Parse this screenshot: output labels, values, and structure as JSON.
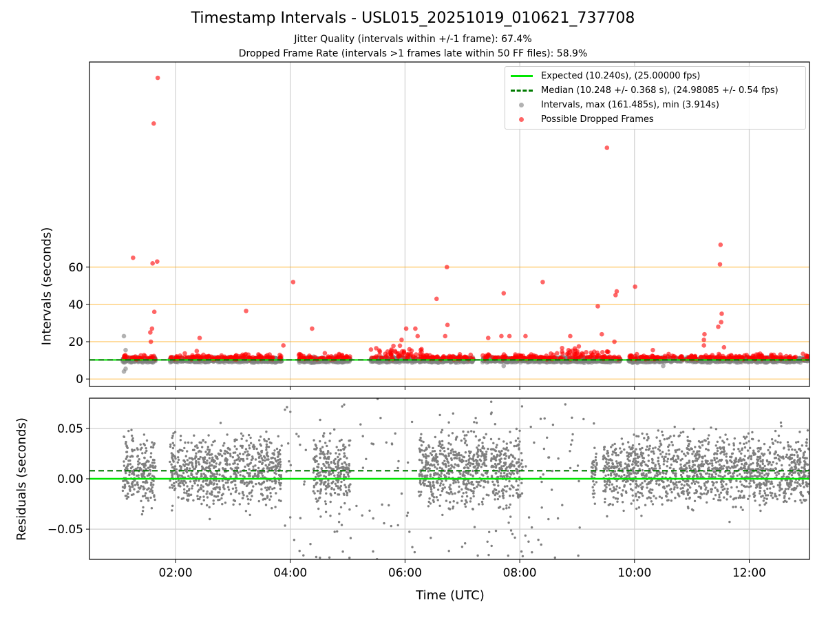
{
  "title": "Timestamp Intervals - USL015_20251019_010621_737708",
  "subtitle1": "Jitter Quality (intervals within +/-1 frame): 67.4%",
  "subtitle2": "Dropped Frame Rate (intervals >1 frames late within 50 FF files): 58.9%",
  "colors": {
    "expected": "#00e600",
    "median": "#007a00",
    "intervals": "#7f7f7f",
    "dropped": "#ff0000",
    "threshold": "#ffa500",
    "grid": "#cfcfcf"
  },
  "chart_data": [
    {
      "type": "scatter",
      "panel": "top",
      "ylabel": "Intervals (seconds)",
      "xlabel": "",
      "xlim": [
        0.5,
        13.05
      ],
      "ylim": [
        -4,
        170
      ],
      "yticks": [
        0,
        20,
        40,
        60
      ],
      "ytick_labels": [
        "0",
        "20",
        "40",
        "60"
      ],
      "threshold_lines": [
        0,
        20,
        40,
        60
      ],
      "grid": "vertical",
      "legend_position": "top-right",
      "legend": [
        "Expected (10.240s), (25.00000 fps)",
        "Median (10.248 +/- 0.368 s), (24.98085 +/- 0.54 fps)",
        "Intervals, max (161.485s), min (3.914s)",
        "Possible Dropped Frames"
      ],
      "expected": 10.24,
      "median": 10.248,
      "segments": [
        [
          1.08,
          1.65
        ],
        [
          1.9,
          3.85
        ],
        [
          4.15,
          5.05
        ],
        [
          5.4,
          6.2
        ],
        [
          6.25,
          7.2
        ],
        [
          7.35,
          8.2
        ],
        [
          8.2,
          9.75
        ],
        [
          9.9,
          10.85
        ],
        [
          10.9,
          11.65
        ],
        [
          11.65,
          13.05
        ]
      ],
      "dropped_outliers": [
        {
          "x": 1.26,
          "y": 65.0
        },
        {
          "x": 1.62,
          "y": 137.0
        },
        {
          "x": 1.69,
          "y": 161.5
        },
        {
          "x": 1.6,
          "y": 62.0
        },
        {
          "x": 1.68,
          "y": 63.0
        },
        {
          "x": 1.63,
          "y": 36.0
        },
        {
          "x": 1.56,
          "y": 25.0
        },
        {
          "x": 1.59,
          "y": 27.0
        },
        {
          "x": 1.57,
          "y": 20.0
        },
        {
          "x": 2.42,
          "y": 22.0
        },
        {
          "x": 2.37,
          "y": 15.0
        },
        {
          "x": 3.23,
          "y": 36.5
        },
        {
          "x": 3.17,
          "y": 13.0
        },
        {
          "x": 4.05,
          "y": 52.0
        },
        {
          "x": 3.88,
          "y": 18.0
        },
        {
          "x": 4.38,
          "y": 27.0
        },
        {
          "x": 5.94,
          "y": 21.0
        },
        {
          "x": 6.02,
          "y": 27.0
        },
        {
          "x": 6.18,
          "y": 27.0
        },
        {
          "x": 6.22,
          "y": 23.0
        },
        {
          "x": 6.55,
          "y": 43.0
        },
        {
          "x": 6.73,
          "y": 60.0
        },
        {
          "x": 6.7,
          "y": 23.0
        },
        {
          "x": 6.74,
          "y": 29.0
        },
        {
          "x": 7.45,
          "y": 22.0
        },
        {
          "x": 7.72,
          "y": 46.0
        },
        {
          "x": 7.68,
          "y": 23.0
        },
        {
          "x": 7.82,
          "y": 23.0
        },
        {
          "x": 8.4,
          "y": 52.0
        },
        {
          "x": 8.1,
          "y": 23.0
        },
        {
          "x": 9.52,
          "y": 124.0
        },
        {
          "x": 9.36,
          "y": 39.0
        },
        {
          "x": 9.43,
          "y": 24.0
        },
        {
          "x": 9.67,
          "y": 45.0
        },
        {
          "x": 9.69,
          "y": 47.0
        },
        {
          "x": 9.65,
          "y": 20.0
        },
        {
          "x": 10.01,
          "y": 49.5
        },
        {
          "x": 11.5,
          "y": 72.0
        },
        {
          "x": 11.49,
          "y": 61.5
        },
        {
          "x": 11.52,
          "y": 35.0
        },
        {
          "x": 11.51,
          "y": 30.5
        },
        {
          "x": 11.46,
          "y": 28.0
        },
        {
          "x": 11.21,
          "y": 21.0
        },
        {
          "x": 11.22,
          "y": 24.0
        },
        {
          "x": 11.21,
          "y": 18.0
        },
        {
          "x": 11.56,
          "y": 17.0
        },
        {
          "x": 10.32,
          "y": 15.5
        },
        {
          "x": 8.88,
          "y": 23.0
        }
      ],
      "gray_outliers": [
        {
          "x": 1.1,
          "y": 23.0
        },
        {
          "x": 1.13,
          "y": 15.5
        },
        {
          "x": 1.1,
          "y": 4.0
        },
        {
          "x": 1.13,
          "y": 5.5
        },
        {
          "x": 7.72,
          "y": 7.0
        },
        {
          "x": 10.5,
          "y": 7.0
        }
      ]
    },
    {
      "type": "scatter",
      "panel": "bottom",
      "ylabel": "Residuals (seconds)",
      "xlabel": "Time (UTC)",
      "xlim": [
        0.5,
        13.05
      ],
      "ylim": [
        -0.08,
        0.08
      ],
      "yticks": [
        -0.05,
        0.0,
        0.05
      ],
      "ytick_labels": [
        "−0.05",
        "0.00",
        "0.05"
      ],
      "xticks": [
        2,
        4,
        6,
        8,
        10,
        12
      ],
      "xtick_labels": [
        "02:00",
        "04:00",
        "06:00",
        "08:00",
        "10:00",
        "12:00"
      ],
      "grid": "both",
      "expected_residual": 0.0,
      "median_residual": 0.008,
      "segments": [
        [
          1.08,
          1.65
        ],
        [
          1.9,
          3.85
        ],
        [
          4.4,
          5.05
        ],
        [
          6.25,
          7.05
        ],
        [
          7.05,
          7.45
        ],
        [
          7.5,
          8.05
        ],
        [
          9.25,
          9.35
        ],
        [
          9.45,
          13.05
        ]
      ],
      "sparse_range": [
        3.85,
        9.25
      ]
    }
  ]
}
